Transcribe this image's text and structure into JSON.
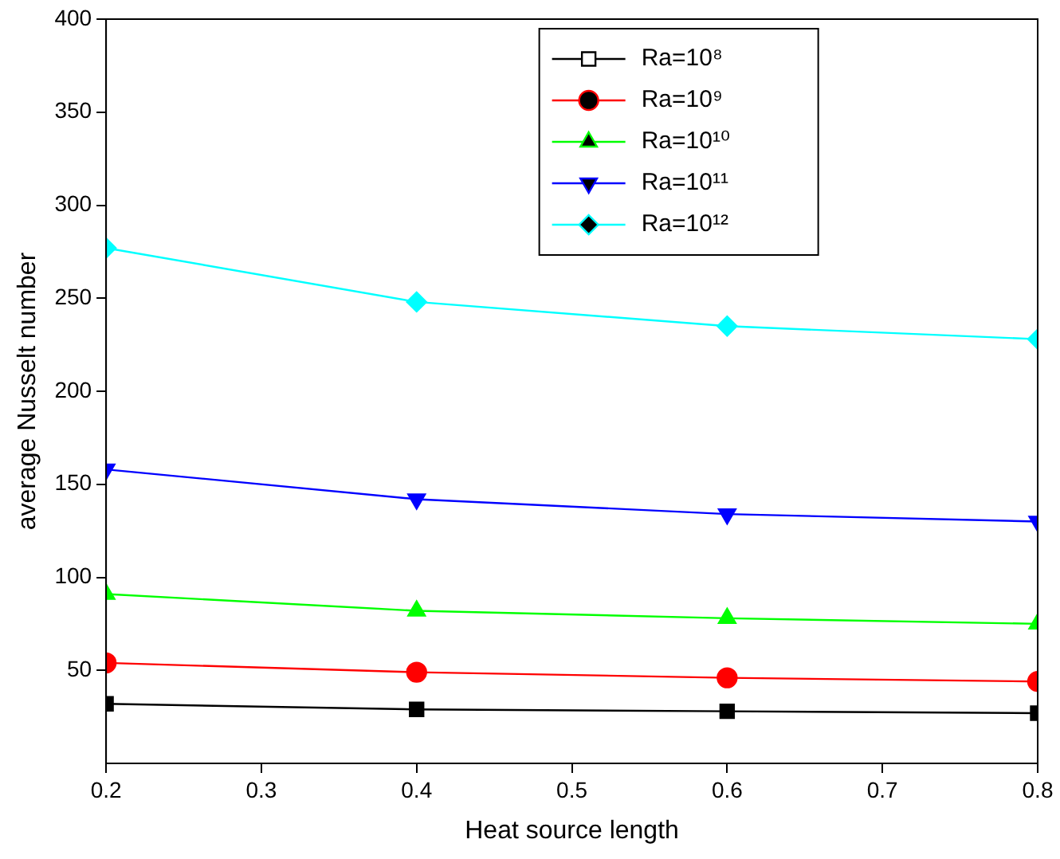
{
  "chart_data": {
    "type": "line",
    "xlabel": "Heat source length",
    "ylabel": "average Nusselt number",
    "x": [
      0.2,
      0.4,
      0.6,
      0.8
    ],
    "series": [
      {
        "name": "Ra=10⁸",
        "color": "#000000",
        "marker": "square",
        "values": [
          32,
          29,
          28,
          27
        ]
      },
      {
        "name": "Ra=10⁹",
        "color": "#ff0000",
        "marker": "circle",
        "values": [
          54,
          49,
          46,
          44
        ]
      },
      {
        "name": "Ra=10¹⁰",
        "color": "#00ff00",
        "marker": "triangle",
        "values": [
          91,
          82,
          78,
          75
        ]
      },
      {
        "name": "Ra=10¹¹",
        "color": "#0000ff",
        "marker": "triangle-down",
        "values": [
          158,
          142,
          134,
          130
        ]
      },
      {
        "name": "Ra=10¹²",
        "color": "#00ffff",
        "marker": "diamond",
        "values": [
          277,
          248,
          235,
          228
        ]
      }
    ],
    "xlim": [
      0.2,
      0.8
    ],
    "xticks": [
      0.2,
      0.3,
      0.4,
      0.5,
      0.6,
      0.7,
      0.8
    ],
    "ylim": [
      0,
      400
    ],
    "yticks": [
      50,
      100,
      150,
      200,
      250,
      300,
      350,
      400
    ],
    "grid": false,
    "legend": "top right",
    "line_style": "solid"
  }
}
